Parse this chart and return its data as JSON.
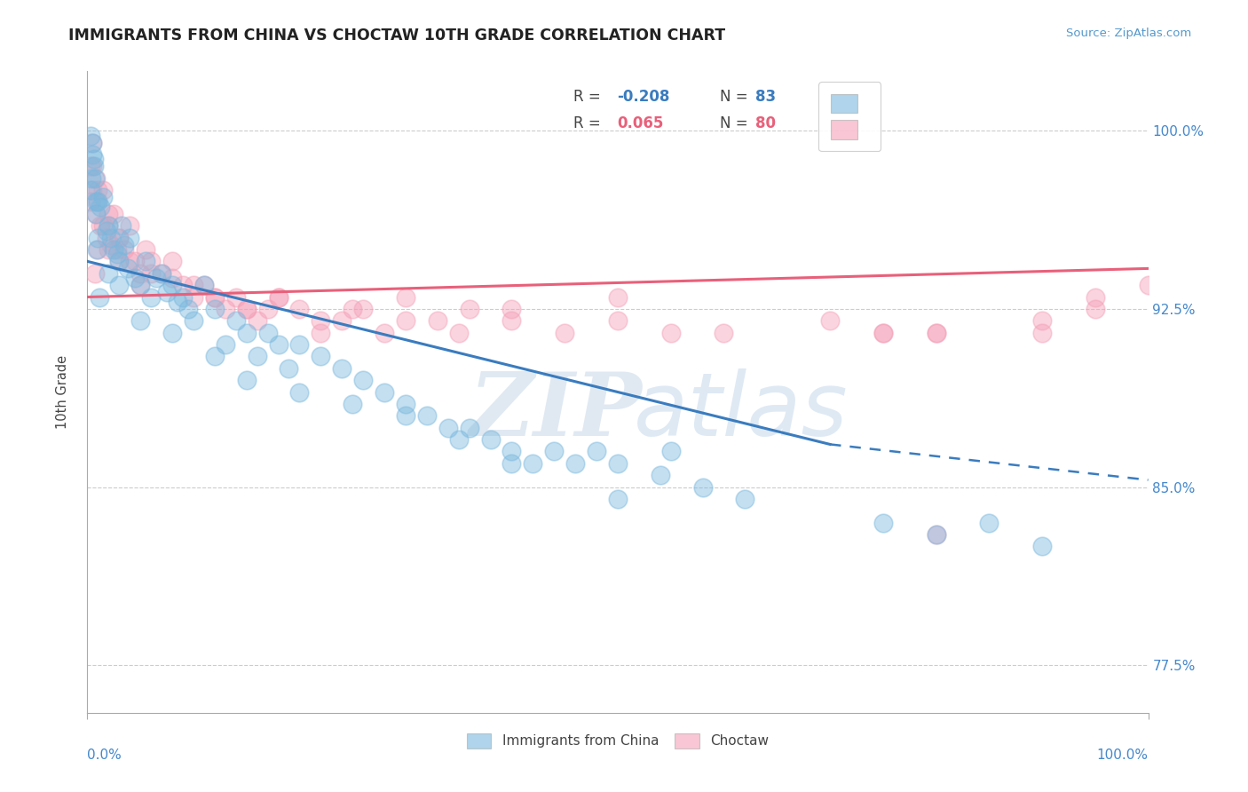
{
  "title": "IMMIGRANTS FROM CHINA VS CHOCTAW 10TH GRADE CORRELATION CHART",
  "source": "Source: ZipAtlas.com",
  "ylabel": "10th Grade",
  "xlim": [
    0.0,
    100.0
  ],
  "ylim": [
    75.5,
    102.5
  ],
  "yticks": [
    77.5,
    85.0,
    92.5,
    100.0
  ],
  "ytick_labels": [
    "77.5%",
    "85.0%",
    "92.5%",
    "100.0%"
  ],
  "blue_color": "#7ab8de",
  "pink_color": "#f4a0b8",
  "blue_line_color": "#3a7cbf",
  "pink_line_color": "#e8607a",
  "watermark_zip": "ZIP",
  "watermark_atlas": "atlas",
  "background_color": "#ffffff",
  "grid_color": "#cccccc",
  "blue_label_R": "R = ",
  "blue_label_R_val": "-0.208",
  "blue_label_N": "N = ",
  "blue_label_N_val": "83",
  "pink_label_R": "R = ",
  "pink_label_R_val": "0.065",
  "pink_label_N": "N = ",
  "pink_label_N_val": "80",
  "blue_trendline_x0": 0,
  "blue_trendline_x1": 70,
  "blue_trendline_y0": 94.5,
  "blue_trendline_y1": 86.8,
  "blue_dash_x0": 70,
  "blue_dash_x1": 100,
  "blue_dash_y0": 86.8,
  "blue_dash_y1": 85.3,
  "pink_trendline_x0": 0,
  "pink_trendline_x1": 100,
  "pink_trendline_y0": 93.0,
  "pink_trendline_y1": 94.2,
  "blue_x": [
    0.3,
    0.5,
    0.6,
    0.7,
    0.8,
    1.0,
    1.2,
    1.5,
    1.8,
    2.0,
    2.2,
    2.5,
    2.8,
    3.0,
    3.2,
    3.5,
    3.8,
    4.0,
    4.5,
    5.0,
    5.5,
    6.0,
    6.5,
    7.0,
    7.5,
    8.0,
    8.5,
    9.0,
    9.5,
    10.0,
    11.0,
    12.0,
    13.0,
    14.0,
    15.0,
    16.0,
    17.0,
    18.0,
    19.0,
    20.0,
    22.0,
    24.0,
    26.0,
    28.0,
    30.0,
    32.0,
    34.0,
    36.0,
    38.0,
    40.0,
    42.0,
    44.0,
    46.0,
    48.0,
    50.0,
    54.0,
    58.0,
    62.0,
    55.0,
    75.0,
    80.0,
    85.0,
    90.0,
    50.0,
    20.0,
    25.0,
    30.0,
    35.0,
    40.0,
    15.0,
    12.0,
    8.0,
    5.0,
    3.0,
    2.0,
    1.0,
    0.8,
    0.5,
    0.4,
    0.3,
    0.6,
    0.9,
    1.1
  ],
  "blue_y": [
    97.5,
    99.5,
    98.5,
    98.0,
    96.5,
    97.0,
    96.8,
    97.2,
    95.8,
    96.0,
    95.5,
    95.0,
    94.8,
    94.5,
    96.0,
    95.2,
    94.2,
    95.5,
    93.8,
    93.5,
    94.5,
    93.0,
    93.8,
    94.0,
    93.2,
    93.5,
    92.8,
    93.0,
    92.5,
    92.0,
    93.5,
    92.5,
    91.0,
    92.0,
    91.5,
    90.5,
    91.5,
    91.0,
    90.0,
    91.0,
    90.5,
    90.0,
    89.5,
    89.0,
    88.5,
    88.0,
    87.5,
    87.5,
    87.0,
    86.5,
    86.0,
    86.5,
    86.0,
    86.5,
    86.0,
    85.5,
    85.0,
    84.5,
    86.5,
    83.5,
    83.0,
    83.5,
    82.5,
    84.5,
    89.0,
    88.5,
    88.0,
    87.0,
    86.0,
    89.5,
    90.5,
    91.5,
    92.0,
    93.5,
    94.0,
    95.5,
    97.0,
    99.0,
    98.0,
    99.8,
    98.8,
    95.0,
    93.0
  ],
  "pink_x": [
    0.3,
    0.5,
    0.8,
    1.0,
    1.2,
    1.5,
    1.8,
    2.0,
    2.2,
    2.5,
    2.8,
    3.0,
    3.5,
    4.0,
    4.5,
    5.0,
    5.5,
    6.0,
    7.0,
    8.0,
    9.0,
    10.0,
    11.0,
    12.0,
    13.0,
    14.0,
    15.0,
    16.0,
    17.0,
    18.0,
    20.0,
    22.0,
    24.0,
    26.0,
    28.0,
    30.0,
    33.0,
    36.0,
    40.0,
    45.0,
    50.0,
    55.0,
    75.0,
    80.0,
    90.0,
    95.0,
    5.0,
    3.0,
    2.0,
    1.5,
    1.0,
    0.8,
    0.5,
    4.0,
    6.0,
    8.0,
    10.0,
    12.0,
    15.0,
    18.0,
    22.0,
    25.0,
    30.0,
    35.0,
    40.0,
    50.0,
    60.0,
    70.0,
    75.0,
    80.0,
    90.0,
    95.0,
    100.0,
    80.0,
    3.0,
    2.0,
    1.0,
    0.5,
    0.3,
    0.7
  ],
  "pink_y": [
    97.0,
    98.5,
    96.5,
    97.0,
    96.0,
    97.5,
    95.5,
    96.0,
    95.2,
    96.5,
    95.0,
    95.5,
    95.0,
    96.0,
    94.5,
    94.0,
    95.0,
    94.5,
    94.0,
    94.5,
    93.5,
    93.0,
    93.5,
    93.0,
    92.5,
    93.0,
    92.5,
    92.0,
    92.5,
    93.0,
    92.5,
    91.5,
    92.0,
    92.5,
    91.5,
    93.0,
    92.0,
    92.5,
    92.0,
    91.5,
    92.0,
    91.5,
    91.5,
    91.5,
    91.5,
    93.0,
    93.5,
    94.5,
    95.0,
    96.0,
    97.5,
    98.0,
    99.5,
    94.5,
    94.0,
    93.8,
    93.5,
    93.0,
    92.5,
    93.0,
    92.0,
    92.5,
    92.0,
    91.5,
    92.5,
    93.0,
    91.5,
    92.0,
    91.5,
    91.5,
    92.0,
    92.5,
    93.5,
    83.0,
    95.5,
    96.5,
    95.0,
    97.5,
    98.5,
    94.0
  ]
}
